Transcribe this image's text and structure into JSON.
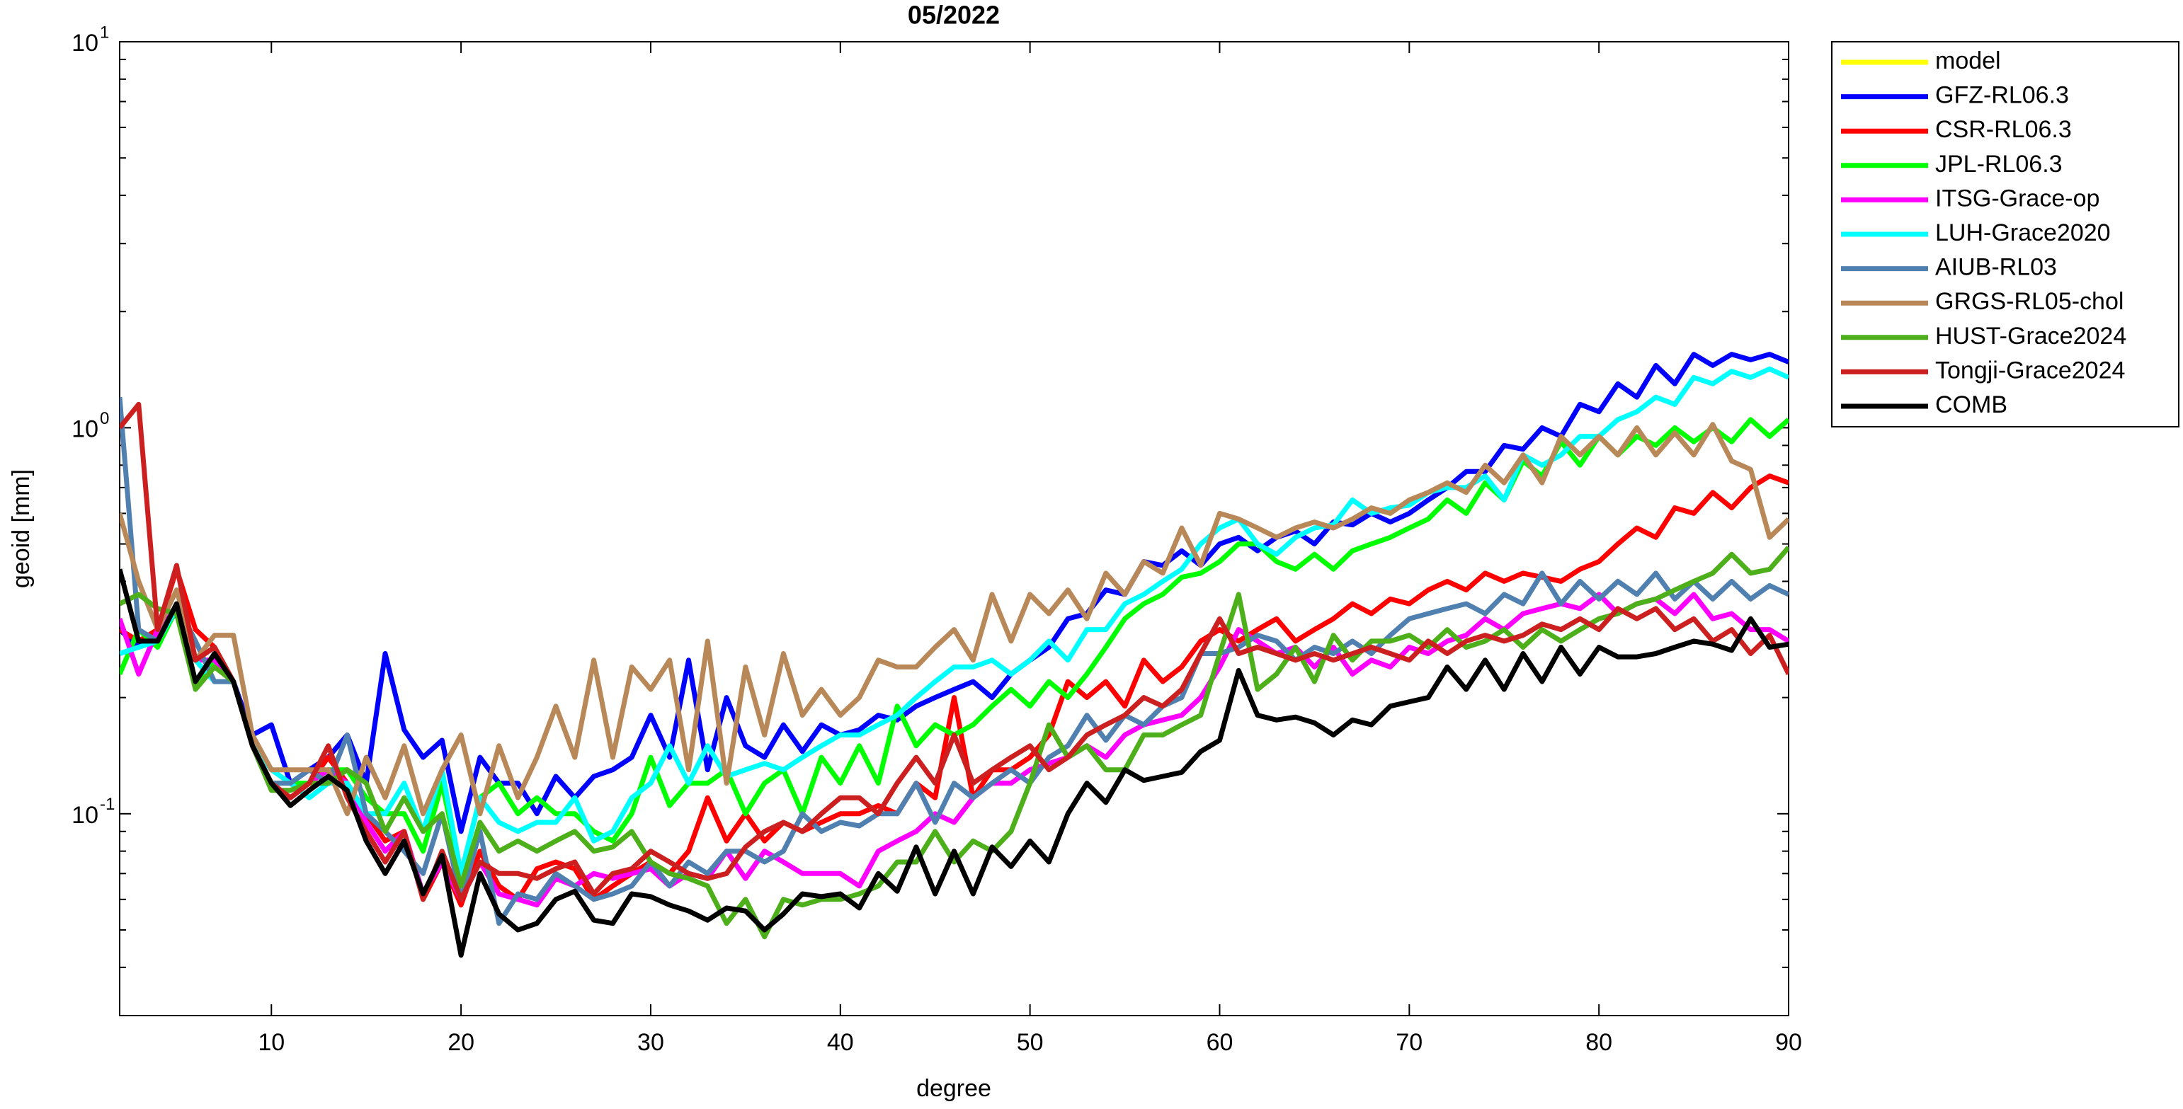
{
  "chart_data": {
    "type": "line",
    "title": "05/2022",
    "xlabel": "degree",
    "ylabel": "geoid [mm]",
    "ylog": true,
    "grid": false,
    "legend": "outside-right",
    "xlim": [
      2,
      90
    ],
    "xticks": [
      10,
      20,
      30,
      40,
      50,
      60,
      70,
      80,
      90
    ],
    "ylim": [
      0.03,
      10
    ],
    "yticks": [
      {
        "value": 0.1,
        "label": "10",
        "exponent": "-1"
      },
      {
        "value": 1,
        "label": "10",
        "exponent": "0"
      },
      {
        "value": 10,
        "label": "10",
        "exponent": "1"
      }
    ],
    "yminorticks": [
      0.04,
      0.05,
      0.06,
      0.07,
      0.08,
      0.09,
      0.2,
      0.3,
      0.4,
      0.5,
      0.6,
      0.7,
      0.8,
      0.9,
      2,
      3,
      4,
      5,
      6,
      7,
      8,
      9
    ],
    "x": [
      2,
      3,
      4,
      5,
      6,
      7,
      8,
      9,
      10,
      11,
      12,
      13,
      14,
      15,
      16,
      17,
      18,
      19,
      20,
      21,
      22,
      23,
      24,
      25,
      26,
      27,
      28,
      29,
      30,
      31,
      32,
      33,
      34,
      35,
      36,
      37,
      38,
      39,
      40,
      41,
      42,
      43,
      44,
      45,
      46,
      47,
      48,
      49,
      50,
      51,
      52,
      53,
      54,
      55,
      56,
      57,
      58,
      59,
      60,
      61,
      62,
      63,
      64,
      65,
      66,
      67,
      68,
      69,
      70,
      71,
      72,
      73,
      74,
      75,
      76,
      77,
      78,
      79,
      80,
      81,
      82,
      83,
      84,
      85,
      86,
      87,
      88,
      89,
      90
    ],
    "series": [
      {
        "name": "model",
        "color": "#ffff00",
        "values": [
          null,
          null,
          null,
          null,
          null,
          null,
          null,
          null,
          null,
          null,
          null,
          null,
          null,
          null,
          null,
          null,
          null,
          null,
          null,
          null,
          null,
          null,
          null,
          null,
          null,
          null,
          null,
          null,
          null,
          null,
          null,
          null,
          null,
          null,
          null,
          null,
          null,
          null,
          null,
          null,
          null,
          null,
          null,
          null,
          null,
          null,
          null,
          null,
          null,
          null,
          null,
          null,
          null,
          null,
          null,
          null,
          null,
          null,
          null,
          null,
          null,
          null,
          null,
          null,
          null,
          null,
          null,
          null,
          null,
          null,
          null,
          null,
          null,
          null,
          null,
          null,
          null,
          null,
          null,
          null,
          null,
          null,
          null,
          null,
          null,
          null,
          null,
          null,
          null
        ]
      },
      {
        "name": "GFZ-RL06.3",
        "color": "#0000ff",
        "values": [
          0.3,
          0.27,
          0.3,
          0.33,
          0.25,
          0.27,
          0.22,
          0.16,
          0.17,
          0.12,
          0.13,
          0.14,
          0.16,
          0.12,
          0.26,
          0.165,
          0.14,
          0.155,
          0.09,
          0.14,
          0.12,
          0.12,
          0.1,
          0.125,
          0.11,
          0.125,
          0.13,
          0.14,
          0.18,
          0.14,
          0.25,
          0.13,
          0.2,
          0.15,
          0.14,
          0.17,
          0.145,
          0.17,
          0.16,
          0.165,
          0.18,
          0.175,
          0.19,
          0.2,
          0.21,
          0.22,
          0.2,
          0.23,
          0.25,
          0.27,
          0.32,
          0.33,
          0.38,
          0.37,
          0.45,
          0.44,
          0.48,
          0.44,
          0.5,
          0.52,
          0.48,
          0.52,
          0.54,
          0.5,
          0.57,
          0.56,
          0.6,
          0.57,
          0.6,
          0.65,
          0.7,
          0.77,
          0.77,
          0.9,
          0.88,
          1.0,
          0.95,
          1.15,
          1.1,
          1.3,
          1.2,
          1.45,
          1.3,
          1.55,
          1.45,
          1.55,
          1.5,
          1.55,
          1.48
        ]
      },
      {
        "name": "CSR-RL06.3",
        "color": "#ff0000",
        "values": [
          0.3,
          0.28,
          0.3,
          0.43,
          0.3,
          0.27,
          0.22,
          0.15,
          0.12,
          0.11,
          0.12,
          0.14,
          0.12,
          0.1,
          0.085,
          0.09,
          0.06,
          0.075,
          0.058,
          0.08,
          0.065,
          0.06,
          0.072,
          0.075,
          0.072,
          0.06,
          0.065,
          0.07,
          0.075,
          0.07,
          0.08,
          0.11,
          0.085,
          0.1,
          0.085,
          0.095,
          0.09,
          0.095,
          0.1,
          0.1,
          0.105,
          0.1,
          0.12,
          0.11,
          0.2,
          0.11,
          0.13,
          0.13,
          0.14,
          0.16,
          0.22,
          0.2,
          0.22,
          0.19,
          0.25,
          0.22,
          0.24,
          0.28,
          0.3,
          0.28,
          0.3,
          0.32,
          0.28,
          0.3,
          0.32,
          0.35,
          0.33,
          0.36,
          0.35,
          0.38,
          0.4,
          0.38,
          0.42,
          0.4,
          0.42,
          0.41,
          0.4,
          0.43,
          0.45,
          0.5,
          0.55,
          0.52,
          0.62,
          0.6,
          0.68,
          0.62,
          0.7,
          0.75,
          0.72
        ]
      },
      {
        "name": "JPL-RL06.3",
        "color": "#00ff00",
        "values": [
          0.23,
          0.3,
          0.27,
          0.34,
          0.22,
          0.25,
          0.22,
          0.15,
          0.12,
          0.12,
          0.12,
          0.13,
          0.13,
          0.11,
          0.1,
          0.1,
          0.08,
          0.12,
          0.07,
          0.11,
          0.12,
          0.1,
          0.11,
          0.1,
          0.1,
          0.09,
          0.085,
          0.1,
          0.14,
          0.105,
          0.12,
          0.12,
          0.13,
          0.1,
          0.12,
          0.13,
          0.1,
          0.14,
          0.12,
          0.15,
          0.12,
          0.19,
          0.15,
          0.17,
          0.16,
          0.17,
          0.19,
          0.21,
          0.19,
          0.22,
          0.2,
          0.23,
          0.27,
          0.32,
          0.35,
          0.37,
          0.41,
          0.42,
          0.45,
          0.5,
          0.5,
          0.45,
          0.43,
          0.47,
          0.43,
          0.48,
          0.5,
          0.52,
          0.55,
          0.58,
          0.65,
          0.6,
          0.72,
          0.65,
          0.82,
          0.75,
          0.92,
          0.8,
          0.95,
          0.85,
          0.95,
          0.9,
          1.0,
          0.92,
          1.0,
          0.92,
          1.05,
          0.95,
          1.05
        ]
      },
      {
        "name": "ITSG-Grace-op",
        "color": "#ff00ff",
        "values": [
          0.32,
          0.23,
          0.3,
          0.34,
          0.25,
          0.25,
          0.22,
          0.15,
          0.12,
          0.11,
          0.12,
          0.13,
          0.12,
          0.095,
          0.08,
          0.09,
          0.062,
          0.075,
          0.06,
          0.075,
          0.062,
          0.06,
          0.058,
          0.068,
          0.065,
          0.07,
          0.068,
          0.07,
          0.072,
          0.065,
          0.07,
          0.068,
          0.08,
          0.068,
          0.08,
          0.075,
          0.07,
          0.07,
          0.07,
          0.065,
          0.08,
          0.085,
          0.09,
          0.1,
          0.095,
          0.11,
          0.12,
          0.12,
          0.13,
          0.135,
          0.14,
          0.15,
          0.14,
          0.16,
          0.17,
          0.175,
          0.18,
          0.2,
          0.24,
          0.3,
          0.28,
          0.26,
          0.27,
          0.24,
          0.27,
          0.23,
          0.25,
          0.24,
          0.27,
          0.26,
          0.28,
          0.29,
          0.32,
          0.3,
          0.33,
          0.34,
          0.35,
          0.34,
          0.37,
          0.33,
          0.35,
          0.36,
          0.33,
          0.37,
          0.32,
          0.33,
          0.3,
          0.3,
          0.28
        ]
      },
      {
        "name": "LUH-Grace2020",
        "color": "#00ffff",
        "values": [
          0.26,
          0.27,
          0.28,
          0.34,
          0.25,
          0.22,
          0.22,
          0.15,
          0.13,
          0.12,
          0.11,
          0.12,
          0.12,
          0.1,
          0.1,
          0.12,
          0.09,
          0.13,
          0.07,
          0.11,
          0.095,
          0.09,
          0.095,
          0.095,
          0.11,
          0.085,
          0.09,
          0.11,
          0.12,
          0.15,
          0.12,
          0.15,
          0.125,
          0.13,
          0.135,
          0.13,
          0.14,
          0.15,
          0.16,
          0.16,
          0.17,
          0.18,
          0.2,
          0.22,
          0.24,
          0.24,
          0.25,
          0.23,
          0.25,
          0.28,
          0.25,
          0.3,
          0.3,
          0.35,
          0.37,
          0.4,
          0.43,
          0.5,
          0.55,
          0.58,
          0.5,
          0.47,
          0.52,
          0.55,
          0.56,
          0.65,
          0.6,
          0.62,
          0.63,
          0.68,
          0.7,
          0.7,
          0.75,
          0.65,
          0.85,
          0.8,
          0.85,
          0.95,
          0.95,
          1.05,
          1.1,
          1.2,
          1.15,
          1.35,
          1.3,
          1.4,
          1.35,
          1.42,
          1.35
        ]
      },
      {
        "name": "AIUB-RL03",
        "color": "#5080b0",
        "values": [
          1.2,
          0.3,
          0.28,
          0.35,
          0.28,
          0.22,
          0.22,
          0.15,
          0.12,
          0.12,
          0.13,
          0.12,
          0.16,
          0.1,
          0.09,
          0.08,
          0.07,
          0.1,
          0.06,
          0.09,
          0.052,
          0.062,
          0.06,
          0.07,
          0.065,
          0.06,
          0.062,
          0.065,
          0.075,
          0.065,
          0.075,
          0.07,
          0.08,
          0.08,
          0.075,
          0.08,
          0.1,
          0.09,
          0.095,
          0.093,
          0.1,
          0.1,
          0.12,
          0.095,
          0.12,
          0.11,
          0.12,
          0.13,
          0.12,
          0.14,
          0.15,
          0.18,
          0.155,
          0.18,
          0.17,
          0.19,
          0.2,
          0.26,
          0.26,
          0.27,
          0.29,
          0.28,
          0.25,
          0.27,
          0.26,
          0.28,
          0.26,
          0.29,
          0.32,
          0.33,
          0.34,
          0.35,
          0.33,
          0.37,
          0.35,
          0.42,
          0.35,
          0.4,
          0.36,
          0.4,
          0.37,
          0.42,
          0.36,
          0.4,
          0.36,
          0.4,
          0.36,
          0.39,
          0.37
        ]
      },
      {
        "name": "GRGS-RL05-chol",
        "color": "#b88858",
        "values": [
          0.6,
          0.4,
          0.3,
          0.38,
          0.25,
          0.29,
          0.29,
          0.16,
          0.13,
          0.13,
          0.13,
          0.13,
          0.1,
          0.14,
          0.11,
          0.15,
          0.1,
          0.13,
          0.16,
          0.1,
          0.15,
          0.11,
          0.14,
          0.19,
          0.14,
          0.25,
          0.14,
          0.24,
          0.21,
          0.25,
          0.13,
          0.28,
          0.12,
          0.24,
          0.16,
          0.26,
          0.18,
          0.21,
          0.18,
          0.2,
          0.25,
          0.24,
          0.24,
          0.27,
          0.3,
          0.25,
          0.37,
          0.28,
          0.37,
          0.33,
          0.38,
          0.32,
          0.42,
          0.37,
          0.45,
          0.42,
          0.55,
          0.44,
          0.6,
          0.58,
          0.55,
          0.52,
          0.55,
          0.57,
          0.55,
          0.58,
          0.62,
          0.6,
          0.65,
          0.68,
          0.72,
          0.68,
          0.8,
          0.72,
          0.85,
          0.72,
          0.95,
          0.85,
          0.95,
          0.85,
          1.0,
          0.85,
          0.97,
          0.85,
          1.02,
          0.82,
          0.78,
          0.52,
          0.58
        ]
      },
      {
        "name": "HUST-Grace2024",
        "color": "#4daf1a",
        "values": [
          0.35,
          0.37,
          0.34,
          0.33,
          0.21,
          0.24,
          0.22,
          0.15,
          0.115,
          0.115,
          0.12,
          0.12,
          0.13,
          0.12,
          0.09,
          0.11,
          0.09,
          0.1,
          0.065,
          0.095,
          0.08,
          0.085,
          0.08,
          0.085,
          0.09,
          0.08,
          0.082,
          0.09,
          0.075,
          0.07,
          0.068,
          0.065,
          0.052,
          0.06,
          0.048,
          0.06,
          0.058,
          0.06,
          0.06,
          0.062,
          0.065,
          0.075,
          0.075,
          0.09,
          0.075,
          0.085,
          0.08,
          0.09,
          0.12,
          0.17,
          0.14,
          0.15,
          0.13,
          0.13,
          0.16,
          0.16,
          0.17,
          0.18,
          0.26,
          0.37,
          0.21,
          0.23,
          0.27,
          0.22,
          0.29,
          0.25,
          0.28,
          0.28,
          0.29,
          0.27,
          0.3,
          0.27,
          0.28,
          0.3,
          0.27,
          0.3,
          0.28,
          0.3,
          0.32,
          0.33,
          0.35,
          0.36,
          0.38,
          0.4,
          0.42,
          0.47,
          0.42,
          0.43,
          0.49
        ]
      },
      {
        "name": "Tongji-Grace2024",
        "color": "#cc2020",
        "values": [
          1.0,
          1.15,
          0.3,
          0.44,
          0.25,
          0.27,
          0.22,
          0.15,
          0.12,
          0.11,
          0.12,
          0.15,
          0.11,
          0.09,
          0.075,
          0.09,
          0.06,
          0.08,
          0.06,
          0.075,
          0.07,
          0.07,
          0.068,
          0.072,
          0.075,
          0.062,
          0.07,
          0.072,
          0.08,
          0.075,
          0.07,
          0.068,
          0.07,
          0.082,
          0.09,
          0.095,
          0.09,
          0.1,
          0.11,
          0.11,
          0.1,
          0.12,
          0.14,
          0.12,
          0.16,
          0.12,
          0.13,
          0.14,
          0.15,
          0.13,
          0.14,
          0.16,
          0.17,
          0.18,
          0.2,
          0.19,
          0.21,
          0.26,
          0.32,
          0.26,
          0.27,
          0.26,
          0.25,
          0.26,
          0.25,
          0.26,
          0.27,
          0.26,
          0.25,
          0.28,
          0.26,
          0.28,
          0.29,
          0.28,
          0.29,
          0.31,
          0.3,
          0.32,
          0.3,
          0.34,
          0.32,
          0.34,
          0.3,
          0.32,
          0.28,
          0.3,
          0.26,
          0.29,
          0.23
        ]
      },
      {
        "name": "COMB",
        "color": "#000000",
        "values": [
          0.43,
          0.28,
          0.28,
          0.35,
          0.22,
          0.26,
          0.22,
          0.15,
          0.12,
          0.105,
          0.115,
          0.125,
          0.115,
          0.085,
          0.07,
          0.085,
          0.062,
          0.078,
          0.043,
          0.07,
          0.055,
          0.05,
          0.052,
          0.06,
          0.063,
          0.053,
          0.052,
          0.062,
          0.061,
          0.058,
          0.056,
          0.053,
          0.057,
          0.056,
          0.05,
          0.055,
          0.062,
          0.061,
          0.062,
          0.057,
          0.07,
          0.063,
          0.082,
          0.062,
          0.08,
          0.062,
          0.082,
          0.073,
          0.085,
          0.075,
          0.1,
          0.12,
          0.107,
          0.13,
          0.122,
          0.125,
          0.128,
          0.145,
          0.155,
          0.235,
          0.18,
          0.175,
          0.178,
          0.172,
          0.16,
          0.175,
          0.17,
          0.19,
          0.195,
          0.2,
          0.24,
          0.21,
          0.25,
          0.21,
          0.26,
          0.22,
          0.27,
          0.23,
          0.27,
          0.255,
          0.255,
          0.26,
          0.27,
          0.28,
          0.275,
          0.265,
          0.32,
          0.27,
          0.275
        ]
      }
    ]
  }
}
